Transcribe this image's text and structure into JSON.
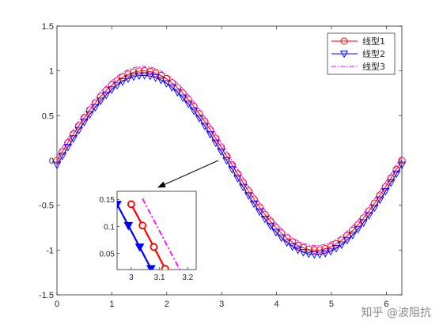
{
  "chart_data": [
    {
      "type": "line",
      "title": "",
      "xlabel": "",
      "ylabel": "",
      "xlim": [
        0,
        6.2832
      ],
      "ylim": [
        -1.5,
        1.5
      ],
      "xticks": [
        "0",
        "1",
        "2",
        "3",
        "4",
        "5",
        "6"
      ],
      "yticks": [
        "-1.5",
        "-1",
        "-0.5",
        "0",
        "0.5",
        "1",
        "1.5"
      ],
      "grid": false,
      "legend_position": "top-right",
      "series": [
        {
          "name": "线型1",
          "function": "sin(x)",
          "x_range": [
            0,
            6.2832
          ],
          "color": "#ff0000",
          "line": "solid",
          "marker": "circle"
        },
        {
          "name": "线型2",
          "function": "sin(x) - 0.05",
          "x_range": [
            0,
            6.2832
          ],
          "color": "#0000ff",
          "line": "solid",
          "marker": "triangle-down"
        },
        {
          "name": "线型3",
          "function": "sin(x) + 0.05",
          "x_range": [
            0,
            6.2832
          ],
          "color": "#ff00ff",
          "line": "dash-dot",
          "marker": "none"
        }
      ]
    },
    {
      "type": "line",
      "title": "",
      "xlim": [
        2.95,
        3.23
      ],
      "ylim": [
        0.02,
        0.165
      ],
      "xticks": [
        "3",
        "3.1",
        "3.2"
      ],
      "yticks": [
        "0.05",
        "0.1",
        "0.15"
      ],
      "zoom_of": "series near x = 3.0 to 3.2, y = 0.02 to 0.16",
      "series": [
        {
          "name": "线型1",
          "x": [
            3.0,
            3.04,
            3.08,
            3.12
          ],
          "y": [
            0.1411,
            0.1016,
            0.0619,
            0.0216
          ],
          "color": "#ff0000"
        },
        {
          "name": "线型2",
          "x": [
            2.95,
            2.99,
            3.03,
            3.07
          ],
          "y": [
            0.1409,
            0.1014,
            0.0616,
            0.0217
          ],
          "color": "#0000ff"
        },
        {
          "name": "线型3",
          "x": [
            3.04,
            3.18
          ],
          "y": [
            0.1516,
            0.0116
          ],
          "color": "#ff00ff"
        }
      ]
    }
  ],
  "watermark": "知乎 @波阻抗"
}
